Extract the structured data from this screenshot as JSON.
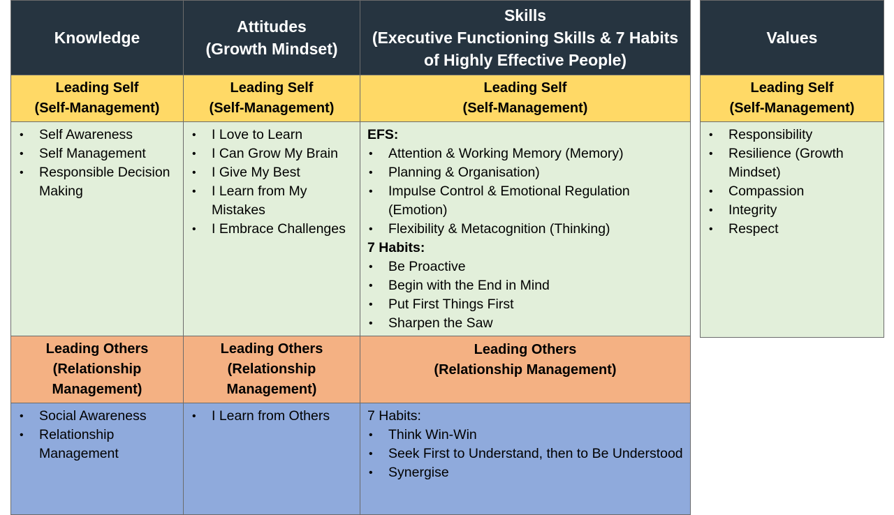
{
  "headers": {
    "knowledge": [
      "Knowledge"
    ],
    "attitudes": [
      "Attitudes",
      "(Growth Mindset)"
    ],
    "skills": [
      "Skills",
      "(Executive Functioning Skills & 7 Habits",
      "of Highly Effective People)"
    ],
    "values": [
      "Values"
    ]
  },
  "leading_self": {
    "subheader": [
      "Leading Self",
      "(Self-Management)"
    ],
    "knowledge": [
      "Self Awareness",
      "Self Management",
      "Responsible Decision Making"
    ],
    "attitudes": [
      "I Love to Learn",
      "I Can Grow My Brain",
      "I Give My Best",
      "I Learn from My Mistakes",
      "I Embrace Challenges"
    ],
    "skills": {
      "efs_label": "EFS:",
      "efs": [
        "Attention & Working Memory (Memory)",
        "Planning & Organisation)",
        "Impulse Control & Emotional Regulation (Emotion)",
        "Flexibility & Metacognition  (Thinking)"
      ],
      "habits_label": "7 Habits:",
      "habits": [
        "Be Proactive",
        "Begin with the End in Mind",
        "Put First Things First",
        "Sharpen the Saw"
      ]
    },
    "values": [
      "Responsibility",
      "Resilience (Growth Mindset)",
      "Compassion",
      "Integrity",
      "Respect"
    ]
  },
  "leading_others": {
    "subheader_knowledge": [
      "Leading Others",
      "(Relationship",
      "Management)"
    ],
    "subheader_attitudes": [
      "Leading Others",
      "(Relationship",
      "Management)"
    ],
    "subheader_skills": [
      "Leading Others",
      "(Relationship Management)"
    ],
    "knowledge": [
      "Social Awareness",
      "Relationship Management"
    ],
    "attitudes": [
      "I Learn from Others"
    ],
    "skills": {
      "habits_label": "7 Habits:",
      "habits": [
        "Think Win-Win",
        "Seek First to Understand, then to Be Understood",
        "Synergise"
      ]
    }
  }
}
